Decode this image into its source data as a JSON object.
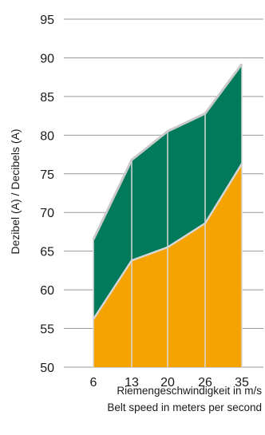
{
  "chart_data": {
    "type": "area",
    "x": [
      6,
      13,
      20,
      26,
      35
    ],
    "xticks": [
      "6",
      "13",
      "20",
      "26",
      "35"
    ],
    "ylim": [
      50,
      95
    ],
    "yticks": [
      "50",
      "55",
      "60",
      "65",
      "70",
      "75",
      "80",
      "85",
      "90",
      "95"
    ],
    "ylabel": "Dezibel (A) / Decibels (A)",
    "xlabel_line1": "Riemengeschwindigkeit in m/s",
    "xlabel_line2": "Belt speed in meters per second",
    "grid": true,
    "series": [
      {
        "values": [
          56.2,
          63.8,
          65.5,
          68.6,
          76.3
        ],
        "color": "#F5A300"
      },
      {
        "values": [
          66.5,
          76.8,
          80.5,
          82.8,
          89.2
        ],
        "color": "#007A5A"
      }
    ]
  }
}
